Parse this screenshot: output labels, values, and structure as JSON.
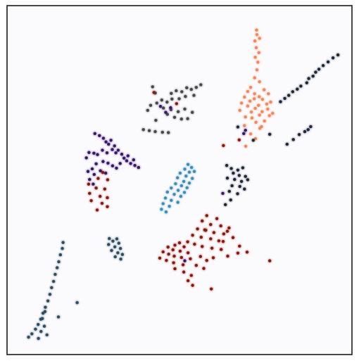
{
  "chart_data": {
    "type": "scatter",
    "title": "",
    "xlabel": "",
    "ylabel": "",
    "xlim": [
      0,
      100
    ],
    "ylim": [
      0,
      100
    ],
    "grid": false,
    "legend": "none",
    "colors": {
      "frame": "#1a1a1a",
      "background": "#fbfafd",
      "orange": "#f08a5d",
      "navy": "#1e2a3a",
      "gray": "#4a4a4a",
      "purple": "#3b1a6b",
      "darkred": "#8c1a10",
      "teal": "#3f8fb5",
      "slate": "#2f4f63"
    },
    "series": [
      {
        "color_key": "orange",
        "points": [
          [
            73.5,
            95.2
          ],
          [
            73.6,
            93.8
          ],
          [
            74.4,
            92.7
          ],
          [
            73.0,
            91.9
          ],
          [
            73.4,
            89.9
          ],
          [
            74.2,
            88.4
          ],
          [
            73.1,
            87.0
          ],
          [
            73.9,
            85.5
          ],
          [
            73.6,
            83.2
          ],
          [
            72.9,
            80.8
          ],
          [
            74.4,
            79.6
          ],
          [
            71.7,
            77.9
          ],
          [
            70.8,
            76.7
          ],
          [
            72.9,
            76.0
          ],
          [
            75.8,
            77.2
          ],
          [
            74.3,
            75.1
          ],
          [
            69.8,
            75.0
          ],
          [
            77.1,
            76.0
          ],
          [
            72.8,
            74.5
          ],
          [
            75.3,
            74.3
          ],
          [
            71.5,
            73.8
          ],
          [
            76.6,
            72.9
          ],
          [
            68.9,
            73.2
          ],
          [
            74.1,
            72.5
          ],
          [
            70.8,
            72.3
          ],
          [
            76.9,
            71.4
          ],
          [
            73.1,
            71.6
          ],
          [
            75.2,
            70.6
          ],
          [
            71.9,
            70.5
          ],
          [
            74.4,
            69.6
          ],
          [
            77.4,
            69.4
          ],
          [
            72.1,
            68.7
          ],
          [
            75.9,
            67.8
          ],
          [
            73.3,
            67.4
          ],
          [
            69.8,
            66.4
          ],
          [
            74.5,
            65.6
          ],
          [
            71.7,
            63.9
          ],
          [
            73.2,
            62.5
          ],
          [
            70.2,
            60.2
          ],
          [
            68.4,
            71.0
          ],
          [
            70.1,
            69.0
          ],
          [
            77.8,
            73.5
          ],
          [
            78.4,
            70.1
          ],
          [
            75.0,
            66.1
          ]
        ]
      },
      {
        "color_key": "navy",
        "points": [
          [
            98.3,
            87.7
          ],
          [
            96.8,
            86.8
          ],
          [
            95.3,
            85.6
          ],
          [
            93.8,
            84.5
          ],
          [
            92.5,
            83.4
          ],
          [
            91.5,
            82.5
          ],
          [
            90.7,
            81.3
          ],
          [
            89.4,
            80.6
          ],
          [
            88.8,
            79.3
          ],
          [
            87.0,
            78.3
          ],
          [
            85.9,
            77.4
          ],
          [
            84.5,
            76.6
          ],
          [
            83.3,
            75.5
          ],
          [
            82.1,
            74.6
          ],
          [
            80.8,
            73.6
          ],
          [
            90.0,
            66.1
          ],
          [
            89.2,
            65.2
          ],
          [
            88.2,
            64.6
          ],
          [
            86.5,
            63.7
          ],
          [
            84.7,
            62.2
          ],
          [
            82.8,
            60.8
          ],
          [
            77.5,
            63.8
          ],
          [
            72.5,
            62.0
          ],
          [
            67.8,
            66.0
          ],
          [
            64.4,
            54.4
          ],
          [
            65.8,
            53.5
          ],
          [
            67.8,
            53.0
          ],
          [
            69.3,
            53.7
          ],
          [
            66.4,
            52.1
          ],
          [
            68.2,
            51.4
          ],
          [
            70.1,
            51.1
          ],
          [
            64.6,
            50.6
          ],
          [
            66.8,
            50.2
          ],
          [
            68.9,
            49.6
          ],
          [
            70.8,
            50.1
          ],
          [
            66.0,
            48.3
          ],
          [
            68.4,
            48.1
          ],
          [
            69.8,
            47.3
          ],
          [
            65.2,
            46.6
          ],
          [
            67.7,
            45.9
          ],
          [
            65.6,
            44.0
          ],
          [
            64.0,
            42.6
          ]
        ]
      },
      {
        "color_key": "gray",
        "points": [
          [
            56.5,
            78.7
          ],
          [
            55.1,
            77.9
          ],
          [
            53.6,
            77.3
          ],
          [
            52.2,
            77.8
          ],
          [
            50.7,
            76.6
          ],
          [
            49.0,
            76.9
          ],
          [
            47.5,
            76.1
          ],
          [
            54.4,
            75.5
          ],
          [
            51.8,
            75.2
          ],
          [
            49.9,
            74.5
          ],
          [
            47.7,
            74.4
          ],
          [
            46.2,
            73.5
          ],
          [
            44.6,
            74.1
          ],
          [
            43.1,
            73.2
          ],
          [
            41.2,
            72.5
          ],
          [
            45.1,
            71.7
          ],
          [
            47.4,
            71.2
          ],
          [
            49.6,
            70.6
          ],
          [
            51.6,
            71.4
          ],
          [
            53.9,
            70.4
          ],
          [
            46.3,
            69.8
          ],
          [
            48.5,
            68.9
          ],
          [
            50.6,
            68.4
          ],
          [
            52.5,
            68.5
          ],
          [
            42.8,
            68.0
          ],
          [
            40.3,
            71.0
          ],
          [
            41.8,
            78.1
          ],
          [
            42.6,
            76.2
          ],
          [
            39.0,
            65.2
          ],
          [
            40.8,
            64.9
          ],
          [
            42.6,
            64.6
          ],
          [
            44.8,
            64.4
          ],
          [
            46.6,
            64.3
          ]
        ]
      },
      {
        "color_key": "purple",
        "points": [
          [
            24.2,
            64.0
          ],
          [
            25.6,
            63.4
          ],
          [
            26.8,
            62.6
          ],
          [
            27.6,
            61.5
          ],
          [
            28.4,
            60.8
          ],
          [
            29.1,
            62.0
          ],
          [
            30.2,
            60.3
          ],
          [
            29.5,
            59.2
          ],
          [
            31.3,
            59.0
          ],
          [
            30.6,
            58.2
          ],
          [
            32.4,
            57.8
          ],
          [
            33.1,
            56.6
          ],
          [
            34.3,
            57.3
          ],
          [
            33.9,
            55.8
          ],
          [
            35.1,
            55.0
          ],
          [
            36.0,
            56.1
          ],
          [
            36.4,
            54.4
          ],
          [
            37.5,
            53.8
          ],
          [
            31.9,
            55.0
          ],
          [
            30.8,
            53.6
          ],
          [
            29.6,
            54.3
          ],
          [
            28.2,
            55.1
          ],
          [
            26.7,
            55.6
          ],
          [
            25.0,
            57.7
          ],
          [
            23.9,
            58.1
          ],
          [
            22.4,
            58.3
          ],
          [
            21.6,
            56.7
          ],
          [
            24.6,
            54.9
          ],
          [
            23.4,
            53.4
          ],
          [
            22.1,
            52.6
          ],
          [
            24.0,
            51.7
          ],
          [
            22.6,
            50.2
          ],
          [
            23.7,
            48.8
          ],
          [
            26.5,
            59.0
          ],
          [
            27.9,
            58.2
          ],
          [
            25.9,
            52.8
          ],
          [
            27.5,
            52.1
          ],
          [
            45.8,
            70.4
          ],
          [
            47.3,
            71.8
          ],
          [
            44.2,
            72.2
          ],
          [
            70.1,
            65.0
          ],
          [
            69.6,
            64.0
          ],
          [
            63.2,
            46.0
          ],
          [
            51.6,
            25.7
          ]
        ]
      },
      {
        "color_key": "darkred",
        "points": [
          [
            42.2,
            76.4
          ],
          [
            49.1,
            73.0
          ],
          [
            63.4,
            60.4
          ],
          [
            68.2,
            62.1
          ],
          [
            26.6,
            52.3
          ],
          [
            25.2,
            50.5
          ],
          [
            28.1,
            50.1
          ],
          [
            22.3,
            48.8
          ],
          [
            24.6,
            47.6
          ],
          [
            27.2,
            47.3
          ],
          [
            22.6,
            46.0
          ],
          [
            25.8,
            45.1
          ],
          [
            28.0,
            44.7
          ],
          [
            23.1,
            43.8
          ],
          [
            26.4,
            43.0
          ],
          [
            28.0,
            42.0
          ],
          [
            24.9,
            41.0
          ],
          [
            58.3,
            39.3
          ],
          [
            61.4,
            38.4
          ],
          [
            56.9,
            37.7
          ],
          [
            59.5,
            36.6
          ],
          [
            62.6,
            36.2
          ],
          [
            55.5,
            35.3
          ],
          [
            58.0,
            34.9
          ],
          [
            60.5,
            34.2
          ],
          [
            63.5,
            33.8
          ],
          [
            54.0,
            33.4
          ],
          [
            56.6,
            32.8
          ],
          [
            59.5,
            32.3
          ],
          [
            62.0,
            31.7
          ],
          [
            64.6,
            34.6
          ],
          [
            66.3,
            32.7
          ],
          [
            68.3,
            30.1
          ],
          [
            52.5,
            31.4
          ],
          [
            54.6,
            30.7
          ],
          [
            56.9,
            30.0
          ],
          [
            59.9,
            29.5
          ],
          [
            62.7,
            29.1
          ],
          [
            50.0,
            31.1
          ],
          [
            51.4,
            29.9
          ],
          [
            48.6,
            30.4
          ],
          [
            46.5,
            29.8
          ],
          [
            48.0,
            29.0
          ],
          [
            50.2,
            28.6
          ],
          [
            52.6,
            28.1
          ],
          [
            45.0,
            28.4
          ],
          [
            46.7,
            27.7
          ],
          [
            48.4,
            27.1
          ],
          [
            50.6,
            26.7
          ],
          [
            53.3,
            26.3
          ],
          [
            56.4,
            27.0
          ],
          [
            58.3,
            25.8
          ],
          [
            60.3,
            26.6
          ],
          [
            44.0,
            26.5
          ],
          [
            46.0,
            25.8
          ],
          [
            48.2,
            25.1
          ],
          [
            51.1,
            24.5
          ],
          [
            55.1,
            24.3
          ],
          [
            57.4,
            23.4
          ],
          [
            48.6,
            23.3
          ],
          [
            51.3,
            22.3
          ],
          [
            53.6,
            21.3
          ],
          [
            52.6,
            19.7
          ],
          [
            54.0,
            18.3
          ],
          [
            59.7,
            17.2
          ],
          [
            77.5,
            25.7
          ],
          [
            64.7,
            27.1
          ],
          [
            67.8,
            28.0
          ],
          [
            70.6,
            28.3
          ],
          [
            63.3,
            31.5
          ],
          [
            57.7,
            35.0
          ],
          [
            65.1,
            35.6
          ]
        ]
      },
      {
        "color_key": "teal",
        "points": [
          [
            52.6,
            54.7
          ],
          [
            53.7,
            53.8
          ],
          [
            51.6,
            53.3
          ],
          [
            53.0,
            52.4
          ],
          [
            54.5,
            52.6
          ],
          [
            50.2,
            52.1
          ],
          [
            52.0,
            51.2
          ],
          [
            53.9,
            50.5
          ],
          [
            49.4,
            50.7
          ],
          [
            51.3,
            49.6
          ],
          [
            53.0,
            49.1
          ],
          [
            48.8,
            48.9
          ],
          [
            50.6,
            48.3
          ],
          [
            52.3,
            47.7
          ],
          [
            47.5,
            47.6
          ],
          [
            49.6,
            46.9
          ],
          [
            51.5,
            46.3
          ],
          [
            46.3,
            46.4
          ],
          [
            48.4,
            45.7
          ],
          [
            50.4,
            45.1
          ],
          [
            45.7,
            44.6
          ],
          [
            47.5,
            43.9
          ],
          [
            49.5,
            43.3
          ],
          [
            45.0,
            42.9
          ],
          [
            46.9,
            42.1
          ],
          [
            44.5,
            41.2
          ],
          [
            45.9,
            40.4
          ]
        ]
      },
      {
        "color_key": "slate",
        "points": [
          [
            28.6,
            32.4
          ],
          [
            29.7,
            31.6
          ],
          [
            30.9,
            32.3
          ],
          [
            31.5,
            31.0
          ],
          [
            28.4,
            30.6
          ],
          [
            30.3,
            29.9
          ],
          [
            32.0,
            29.4
          ],
          [
            29.3,
            28.8
          ],
          [
            31.2,
            28.1
          ],
          [
            32.6,
            27.6
          ],
          [
            30.4,
            26.9
          ],
          [
            32.1,
            26.2
          ],
          [
            14.5,
            31.2
          ],
          [
            14.3,
            29.4
          ],
          [
            13.7,
            27.5
          ],
          [
            13.2,
            25.4
          ],
          [
            12.7,
            23.6
          ],
          [
            12.1,
            21.6
          ],
          [
            11.6,
            19.5
          ],
          [
            11.0,
            17.6
          ],
          [
            10.5,
            15.6
          ],
          [
            9.9,
            13.6
          ],
          [
            9.1,
            11.7
          ],
          [
            8.4,
            9.9
          ],
          [
            7.7,
            8.1
          ],
          [
            6.9,
            6.5
          ],
          [
            6.1,
            5.1
          ],
          [
            5.0,
            3.7
          ],
          [
            4.0,
            2.7
          ],
          [
            9.6,
            3.4
          ],
          [
            7.8,
            4.4
          ],
          [
            8.8,
            6.0
          ],
          [
            7.0,
            2.3
          ],
          [
            8.2,
            8.3
          ],
          [
            9.0,
            10.4
          ],
          [
            13.1,
            8.8
          ],
          [
            18.8,
            13.1
          ]
        ]
      }
    ]
  }
}
